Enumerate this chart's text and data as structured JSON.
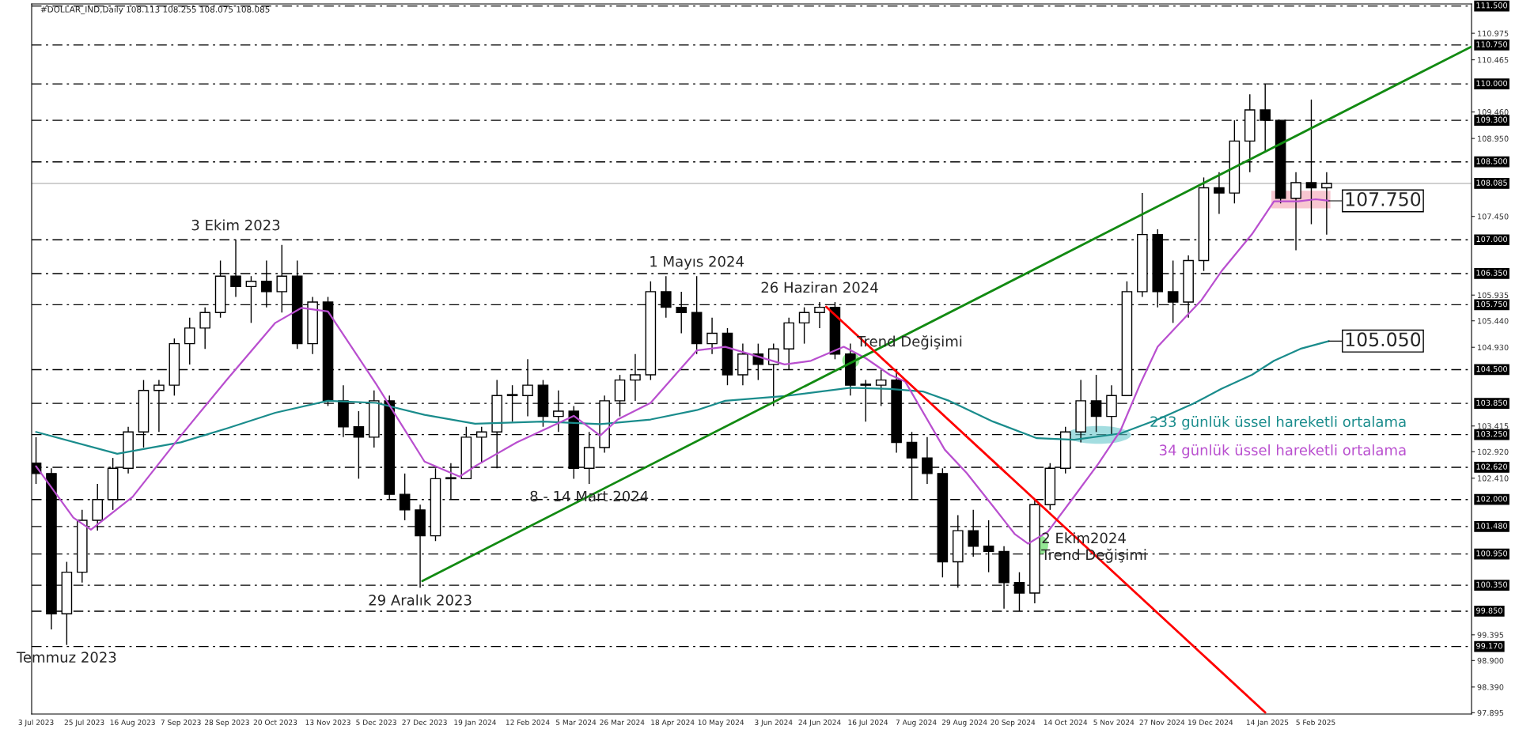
{
  "chart_data": {
    "type": "candlestick",
    "title": "#DOLLAR_IND,Daily 108.113 108.255 108.075 108.085",
    "x": [
      "2023-07-03",
      "2023-07-10",
      "2023-07-17",
      "2023-07-24",
      "2023-07-31",
      "2023-08-07",
      "2023-08-14",
      "2023-08-21",
      "2023-08-28",
      "2023-09-04",
      "2023-09-11",
      "2023-09-18",
      "2023-09-25",
      "2023-10-02",
      "2023-10-09",
      "2023-10-16",
      "2023-10-23",
      "2023-10-30",
      "2023-11-06",
      "2023-11-13",
      "2023-11-20",
      "2023-11-27",
      "2023-12-04",
      "2023-12-11",
      "2023-12-18",
      "2023-12-25",
      "2024-01-01",
      "2024-01-08",
      "2024-01-15",
      "2024-01-22",
      "2024-01-29",
      "2024-02-05",
      "2024-02-12",
      "2024-02-19",
      "2024-02-26",
      "2024-03-04",
      "2024-03-11",
      "2024-03-18",
      "2024-03-25",
      "2024-04-01",
      "2024-04-08",
      "2024-04-15",
      "2024-04-22",
      "2024-04-29",
      "2024-05-06",
      "2024-05-13",
      "2024-05-20",
      "2024-05-27",
      "2024-06-03",
      "2024-06-10",
      "2024-06-17",
      "2024-06-24",
      "2024-07-01",
      "2024-07-08",
      "2024-07-15",
      "2024-07-22",
      "2024-07-29",
      "2024-08-05",
      "2024-08-12",
      "2024-08-19",
      "2024-08-26",
      "2024-09-02",
      "2024-09-09",
      "2024-09-16",
      "2024-09-23",
      "2024-09-30",
      "2024-10-07",
      "2024-10-14",
      "2024-10-21",
      "2024-10-28",
      "2024-11-04",
      "2024-11-11",
      "2024-11-18",
      "2024-11-25",
      "2024-12-02",
      "2024-12-09",
      "2024-12-16",
      "2024-12-23",
      "2024-12-30",
      "2025-01-06",
      "2025-01-13",
      "2025-01-20",
      "2025-01-27",
      "2025-02-03",
      "2025-02-10"
    ],
    "ohlc": [
      [
        102.7,
        103.2,
        102.3,
        102.5
      ],
      [
        102.5,
        102.6,
        99.5,
        99.8
      ],
      [
        99.8,
        100.8,
        99.2,
        100.6
      ],
      [
        100.6,
        101.8,
        100.4,
        101.6
      ],
      [
        101.6,
        102.3,
        101.4,
        102.0
      ],
      [
        102.0,
        102.8,
        101.8,
        102.6
      ],
      [
        102.6,
        103.4,
        102.5,
        103.3
      ],
      [
        103.3,
        104.3,
        103.0,
        104.1
      ],
      [
        104.1,
        104.3,
        103.3,
        104.2
      ],
      [
        104.2,
        105.1,
        104.0,
        105.0
      ],
      [
        105.0,
        105.5,
        104.6,
        105.3
      ],
      [
        105.3,
        105.7,
        104.9,
        105.6
      ],
      [
        105.6,
        106.6,
        105.5,
        106.3
      ],
      [
        106.3,
        107.0,
        105.9,
        106.1
      ],
      [
        106.1,
        106.3,
        105.4,
        106.2
      ],
      [
        106.2,
        106.6,
        105.7,
        106.0
      ],
      [
        106.0,
        106.9,
        105.6,
        106.3
      ],
      [
        106.3,
        106.6,
        104.9,
        105.0
      ],
      [
        105.0,
        105.9,
        104.8,
        105.8
      ],
      [
        105.8,
        105.9,
        103.8,
        103.9
      ],
      [
        103.9,
        104.2,
        103.2,
        103.4
      ],
      [
        103.4,
        103.7,
        102.4,
        103.2
      ],
      [
        103.2,
        104.1,
        103.0,
        103.9
      ],
      [
        103.9,
        104.0,
        102.0,
        102.1
      ],
      [
        102.1,
        102.5,
        101.6,
        101.8
      ],
      [
        101.8,
        101.9,
        100.3,
        101.3
      ],
      [
        101.3,
        102.6,
        101.2,
        102.4
      ],
      [
        102.4,
        102.7,
        102.0,
        102.4
      ],
      [
        102.4,
        103.4,
        102.4,
        103.2
      ],
      [
        103.2,
        103.4,
        102.7,
        103.3
      ],
      [
        103.3,
        104.3,
        102.6,
        104.0
      ],
      [
        104.0,
        104.2,
        103.5,
        104.0
      ],
      [
        104.0,
        104.7,
        103.6,
        104.2
      ],
      [
        104.2,
        104.3,
        103.4,
        103.6
      ],
      [
        103.6,
        104.1,
        103.3,
        103.7
      ],
      [
        103.7,
        103.8,
        102.4,
        102.6
      ],
      [
        102.6,
        103.3,
        102.3,
        103.0
      ],
      [
        103.0,
        104.0,
        102.9,
        103.9
      ],
      [
        103.9,
        104.4,
        103.6,
        104.3
      ],
      [
        104.3,
        104.8,
        103.9,
        104.4
      ],
      [
        104.4,
        106.2,
        104.3,
        106.0
      ],
      [
        106.0,
        106.3,
        105.5,
        105.7
      ],
      [
        105.7,
        106.0,
        105.2,
        105.6
      ],
      [
        105.6,
        106.3,
        104.8,
        105.0
      ],
      [
        105.0,
        105.5,
        104.8,
        105.2
      ],
      [
        105.2,
        105.3,
        104.2,
        104.4
      ],
      [
        104.4,
        105.0,
        104.2,
        104.8
      ],
      [
        104.8,
        105.0,
        104.3,
        104.6
      ],
      [
        104.6,
        105.0,
        103.8,
        104.9
      ],
      [
        104.9,
        105.5,
        104.5,
        105.4
      ],
      [
        105.4,
        105.7,
        105.0,
        105.6
      ],
      [
        105.6,
        105.8,
        105.3,
        105.7
      ],
      [
        105.7,
        105.8,
        104.7,
        104.8
      ],
      [
        104.8,
        105.0,
        104.0,
        104.2
      ],
      [
        104.2,
        104.3,
        103.5,
        104.2
      ],
      [
        104.2,
        104.5,
        103.8,
        104.3
      ],
      [
        104.3,
        104.5,
        102.9,
        103.1
      ],
      [
        103.1,
        103.3,
        102.0,
        102.8
      ],
      [
        102.8,
        103.2,
        102.3,
        102.5
      ],
      [
        102.5,
        102.6,
        100.5,
        100.8
      ],
      [
        100.8,
        101.7,
        100.3,
        101.4
      ],
      [
        101.4,
        101.8,
        100.9,
        101.1
      ],
      [
        101.1,
        101.6,
        100.6,
        101.0
      ],
      [
        101.0,
        101.1,
        99.9,
        100.4
      ],
      [
        100.4,
        100.6,
        99.85,
        100.2
      ],
      [
        100.2,
        102.0,
        100.0,
        101.9
      ],
      [
        101.9,
        102.7,
        101.8,
        102.6
      ],
      [
        102.6,
        103.4,
        102.5,
        103.3
      ],
      [
        103.3,
        104.3,
        103.1,
        103.9
      ],
      [
        103.9,
        104.4,
        103.3,
        103.6
      ],
      [
        103.6,
        104.2,
        103.25,
        104.0
      ],
      [
        104.0,
        106.2,
        104.0,
        106.0
      ],
      [
        106.0,
        107.9,
        105.9,
        107.1
      ],
      [
        107.1,
        107.2,
        105.7,
        106.0
      ],
      [
        106.0,
        106.6,
        105.4,
        105.8
      ],
      [
        105.8,
        106.7,
        105.5,
        106.6
      ],
      [
        106.6,
        108.2,
        106.4,
        108.0
      ],
      [
        108.0,
        108.3,
        107.5,
        107.9
      ],
      [
        107.9,
        109.3,
        107.7,
        108.9
      ],
      [
        108.9,
        109.8,
        108.3,
        109.5
      ],
      [
        109.5,
        110.0,
        108.7,
        109.3
      ],
      [
        109.3,
        109.3,
        107.7,
        107.8
      ],
      [
        107.8,
        108.3,
        106.8,
        108.1
      ],
      [
        108.1,
        109.7,
        107.3,
        108.0
      ],
      [
        108.0,
        108.3,
        107.1,
        108.085
      ]
    ],
    "series": [
      {
        "name": "233 günlük üssel hareketli ortalama",
        "type": "line",
        "color": "#1a8c8c",
        "x": [
          "2023-07-03",
          "2023-08-09",
          "2023-09-07",
          "2023-09-28",
          "2023-10-20",
          "2023-11-13",
          "2023-12-05",
          "2023-12-27",
          "2024-01-19",
          "2024-02-19",
          "2024-03-16",
          "2024-04-08",
          "2024-04-29",
          "2024-05-12",
          "2024-06-08",
          "2024-07-08",
          "2024-07-26",
          "2024-08-10",
          "2024-08-22",
          "2024-09-11",
          "2024-10-01",
          "2024-10-18",
          "2024-11-08",
          "2024-11-25",
          "2024-12-11",
          "2024-12-24",
          "2025-01-07",
          "2025-01-17",
          "2025-01-29",
          "2025-02-11"
        ],
        "values": [
          103.3,
          102.88,
          103.1,
          103.37,
          103.67,
          103.9,
          103.86,
          103.63,
          103.46,
          103.5,
          103.45,
          103.54,
          103.72,
          103.9,
          103.99,
          104.15,
          104.13,
          104.08,
          103.9,
          103.5,
          103.18,
          103.15,
          103.27,
          103.54,
          103.84,
          104.13,
          104.4,
          104.67,
          104.9,
          105.05
        ]
      },
      {
        "name": "34 günlük üssel hareketli ortalama",
        "type": "line",
        "color": "#b94fcf",
        "x": [
          "2023-07-03",
          "2023-07-20",
          "2023-07-28",
          "2023-08-16",
          "2023-09-07",
          "2023-09-28",
          "2023-10-20",
          "2023-11-01",
          "2023-11-13",
          "2023-12-05",
          "2023-12-27",
          "2024-01-12",
          "2024-01-19",
          "2024-02-07",
          "2024-03-04",
          "2024-03-16",
          "2024-03-24",
          "2024-04-08",
          "2024-04-29",
          "2024-05-12",
          "2024-06-08",
          "2024-06-20",
          "2024-07-05",
          "2024-07-15",
          "2024-07-26",
          "2024-08-02",
          "2024-08-20",
          "2024-08-30",
          "2024-09-11",
          "2024-09-21",
          "2024-09-27",
          "2024-10-06",
          "2024-10-18",
          "2024-10-29",
          "2024-11-08",
          "2024-11-17",
          "2024-11-25",
          "2024-12-07",
          "2024-12-15",
          "2024-12-24",
          "2025-01-07",
          "2025-01-17",
          "2025-01-28",
          "2025-02-05",
          "2025-02-11"
        ],
        "values": [
          102.64,
          101.65,
          101.42,
          102.05,
          103.23,
          104.31,
          105.4,
          105.69,
          105.62,
          104.22,
          102.73,
          102.44,
          102.64,
          103.1,
          103.61,
          103.23,
          103.54,
          103.86,
          104.87,
          104.94,
          104.6,
          104.67,
          104.94,
          104.72,
          104.4,
          104.27,
          102.96,
          102.51,
          101.87,
          101.33,
          101.15,
          101.38,
          102.06,
          102.69,
          103.32,
          104.22,
          104.94,
          105.48,
          105.84,
          106.39,
          107.11,
          107.74,
          107.74,
          107.78,
          107.75
        ]
      },
      {
        "type": "line",
        "color": "#128a12",
        "x": [
          "2023-12-26",
          "2025-04-17"
        ],
        "values": [
          100.43,
          110.72
        ]
      },
      {
        "type": "line",
        "color": "#ff0000",
        "x": [
          "2024-06-27",
          "2025-01-13"
        ],
        "values": [
          105.71,
          97.9
        ]
      }
    ],
    "xlim": [
      "2023-07-01",
      "2025-04-17"
    ],
    "ylim": [
      97.87,
      111.54
    ],
    "xticks": [
      {
        "value": "2023-07-03",
        "label": "3 Jul 2023"
      },
      {
        "value": "2023-07-25",
        "label": "25 Jul 2023"
      },
      {
        "value": "2023-08-16",
        "label": "16 Aug 2023"
      },
      {
        "value": "2023-09-07",
        "label": "7 Sep 2023"
      },
      {
        "value": "2023-09-28",
        "label": "28 Sep 2023"
      },
      {
        "value": "2023-10-20",
        "label": "20 Oct 2023"
      },
      {
        "value": "2023-11-13",
        "label": "13 Nov 2023"
      },
      {
        "value": "2023-12-05",
        "label": "5 Dec 2023"
      },
      {
        "value": "2023-12-27",
        "label": "27 Dec 2023"
      },
      {
        "value": "2024-01-19",
        "label": "19 Jan 2024"
      },
      {
        "value": "2024-02-12",
        "label": "12 Feb 2024"
      },
      {
        "value": "2024-03-05",
        "label": "5 Mar 2024"
      },
      {
        "value": "2024-03-26",
        "label": "26 Mar 2024"
      },
      {
        "value": "2024-04-18",
        "label": "18 Apr 2024"
      },
      {
        "value": "2024-05-10",
        "label": "10 May 2024"
      },
      {
        "value": "2024-06-03",
        "label": "3 Jun 2024"
      },
      {
        "value": "2024-06-24",
        "label": "24 Jun 2024"
      },
      {
        "value": "2024-07-16",
        "label": "16 Jul 2024"
      },
      {
        "value": "2024-08-07",
        "label": "7 Aug 2024"
      },
      {
        "value": "2024-08-29",
        "label": "29 Aug 2024"
      },
      {
        "value": "2024-09-20",
        "label": "20 Sep 2024"
      },
      {
        "value": "2024-10-14",
        "label": "14 Oct 2024"
      },
      {
        "value": "2024-11-05",
        "label": "5 Nov 2024"
      },
      {
        "value": "2024-11-27",
        "label": "27 Nov 2024"
      },
      {
        "value": "2024-12-19",
        "label": "19 Dec 2024"
      },
      {
        "value": "2025-01-14",
        "label": "14 Jan 2025"
      },
      {
        "value": "2025-02-05",
        "label": "5 Feb 2025"
      }
    ],
    "yticks": [
      {
        "value": 110.975,
        "label": "110.975"
      },
      {
        "value": 110.465,
        "label": "110.465"
      },
      {
        "value": 109.46,
        "label": "109.460"
      },
      {
        "value": 108.95,
        "label": "108.950"
      },
      {
        "value": 107.45,
        "label": "107.450"
      },
      {
        "value": 105.935,
        "label": "105.935"
      },
      {
        "value": 105.44,
        "label": "105.440"
      },
      {
        "value": 104.93,
        "label": "104.930"
      },
      {
        "value": 103.415,
        "label": "103.415"
      },
      {
        "value": 102.92,
        "label": "102.920"
      },
      {
        "value": 102.41,
        "label": "102.410"
      },
      {
        "value": 99.395,
        "label": "99.395"
      },
      {
        "value": 98.9,
        "label": "98.900"
      },
      {
        "value": 98.39,
        "label": "98.390"
      },
      {
        "value": 97.895,
        "label": "97.895"
      }
    ],
    "ref_lines": [
      {
        "axis": "y",
        "value": 111.5,
        "label": "111.500",
        "line_style": "dashed"
      },
      {
        "axis": "y",
        "value": 110.75,
        "label": "110.750",
        "line_style": "dashed"
      },
      {
        "axis": "y",
        "value": 110.0,
        "label": "110.000",
        "line_style": "dashed"
      },
      {
        "axis": "y",
        "value": 109.3,
        "label": "109.300",
        "line_style": "dashed"
      },
      {
        "axis": "y",
        "value": 108.5,
        "label": "108.500",
        "line_style": "dashed"
      },
      {
        "axis": "y",
        "value": 108.085,
        "label": "108.085",
        "line_style": "solid",
        "color": "#c0c0c0"
      },
      {
        "axis": "y",
        "value": 107.0,
        "label": "107.000",
        "line_style": "dashed"
      },
      {
        "axis": "y",
        "value": 106.35,
        "label": "106.350",
        "line_style": "dashed"
      },
      {
        "axis": "y",
        "value": 105.75,
        "label": "105.750",
        "line_style": "dashed"
      },
      {
        "axis": "y",
        "value": 104.5,
        "label": "104.500",
        "line_style": "dashed"
      },
      {
        "axis": "y",
        "value": 103.85,
        "label": "103.850",
        "line_style": "dashed"
      },
      {
        "axis": "y",
        "value": 103.25,
        "label": "103.250",
        "line_style": "dashed"
      },
      {
        "axis": "y",
        "value": 102.62,
        "label": "102.620",
        "line_style": "dashed"
      },
      {
        "axis": "y",
        "value": 102.0,
        "label": "102.000",
        "line_style": "dashed"
      },
      {
        "axis": "y",
        "value": 101.48,
        "label": "101.480",
        "line_style": "dashed"
      },
      {
        "axis": "y",
        "value": 100.95,
        "label": "100.950",
        "line_style": "dashed"
      },
      {
        "axis": "y",
        "value": 100.35,
        "label": "100.350",
        "line_style": "dashed"
      },
      {
        "axis": "y",
        "value": 99.85,
        "label": "99.850",
        "line_style": "dashed"
      },
      {
        "axis": "y",
        "value": 99.17,
        "label": "99.170",
        "line_style": "dashed"
      }
    ],
    "annotations": [
      {
        "text": "3 Ekim 2023",
        "x": "2023-10-02",
        "y": 107.0
      },
      {
        "text": "29 Aralık 2023",
        "x": "2023-12-25",
        "y": 100.3
      },
      {
        "text": "Temmuz 2023",
        "x": "2023-07-17",
        "y": 99.2
      },
      {
        "text": "8 - 14 Mart 2024",
        "x": "2024-03-11",
        "y": 102.3
      },
      {
        "text": "1 Mayıs 2024",
        "x": "2024-04-29",
        "y": 106.3
      },
      {
        "text": "26 Haziran 2024",
        "x": "2024-06-24",
        "y": 105.8
      },
      {
        "text": "Trend Değişimi",
        "x": "2024-07-05",
        "y": 104.94
      },
      {
        "text": "2 Ekim2024",
        "x": "2024-09-27",
        "y": 101.15
      },
      {
        "text": "Trend Değişimi",
        "x": "2024-09-27",
        "y": 101.15
      },
      {
        "text": "107.750",
        "x": "2025-02-11",
        "y": 107.75
      },
      {
        "text": "105.050",
        "x": "2025-02-11",
        "y": 105.05
      }
    ]
  }
}
